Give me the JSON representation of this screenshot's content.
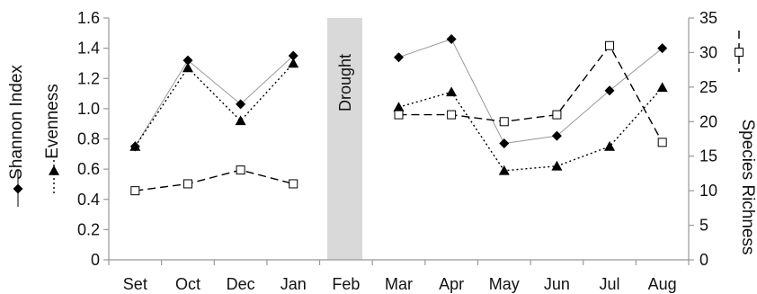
{
  "chart_data": {
    "type": "line",
    "categories": [
      "Set",
      "Oct",
      "Dec",
      "Jan",
      "Feb",
      "Mar",
      "Apr",
      "May",
      "Jun",
      "Jul",
      "Aug"
    ],
    "left_axis": {
      "ylim": [
        0,
        1.6
      ],
      "ticks": [
        "0",
        "0.2",
        "0.4",
        "0.6",
        "0.8",
        "1.0",
        "1.2",
        "1.4",
        "1.6"
      ]
    },
    "right_axis": {
      "label": "Species Richness",
      "ylim": [
        0,
        35
      ],
      "ticks": [
        "0",
        "5",
        "10",
        "15",
        "20",
        "25",
        "30",
        "35"
      ]
    },
    "left_axis_labels": [
      "Shannon Index",
      "Evenness"
    ],
    "shaded_region": {
      "category": "Feb",
      "label": "Drought",
      "color": "#d9d9d9"
    },
    "series": [
      {
        "name": "Shannon Index",
        "axis": "left",
        "marker": "diamond",
        "line": "solid",
        "color": "#999999",
        "values": [
          0.75,
          1.32,
          1.03,
          1.35,
          null,
          1.34,
          1.46,
          0.77,
          0.82,
          1.12,
          1.4
        ]
      },
      {
        "name": "Evenness",
        "axis": "left",
        "marker": "triangle",
        "line": "dotted",
        "color": "#000000",
        "values": [
          0.75,
          1.27,
          0.92,
          1.3,
          null,
          1.01,
          1.11,
          0.59,
          0.62,
          0.75,
          1.14
        ]
      },
      {
        "name": "Species Richness",
        "axis": "right",
        "marker": "open-square",
        "line": "dashed",
        "color": "#000000",
        "values": [
          10,
          11,
          13,
          11,
          null,
          21,
          21,
          20,
          21,
          31,
          17
        ]
      }
    ],
    "grid": false,
    "legend": "none"
  }
}
